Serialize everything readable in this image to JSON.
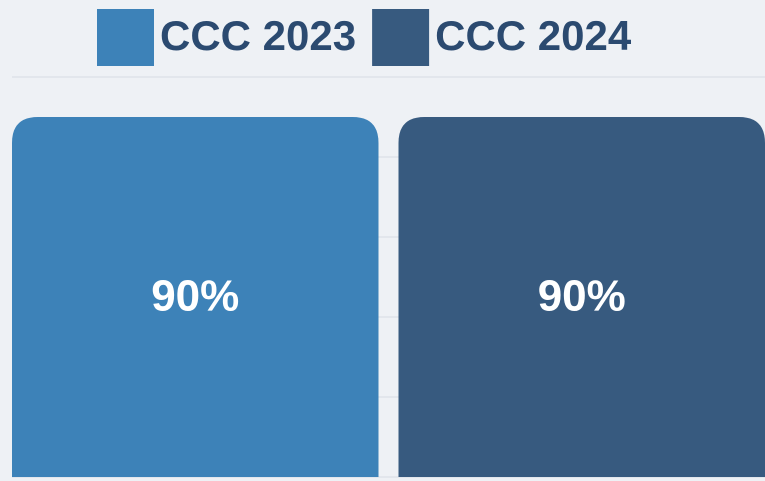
{
  "chart_data": {
    "type": "bar",
    "categories": [
      null
    ],
    "series": [
      {
        "name": "CCC 2023",
        "color": "#3d82b8",
        "values": [
          90
        ],
        "value_labels": [
          "90%"
        ]
      },
      {
        "name": "CCC 2024",
        "color": "#375a7f",
        "values": [
          90
        ],
        "value_labels": [
          "90%"
        ]
      }
    ],
    "ylim": [
      0,
      100
    ],
    "yticks": [
      0,
      20,
      40,
      60,
      80,
      100
    ],
    "grid": true,
    "legend": "top"
  }
}
